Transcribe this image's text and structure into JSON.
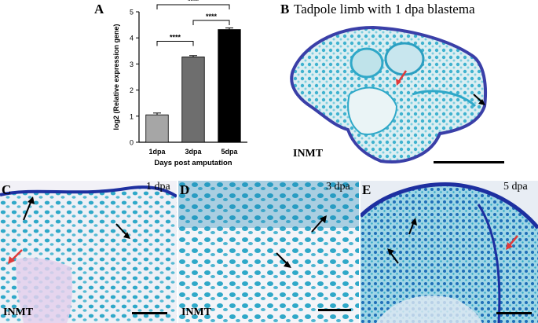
{
  "panels": {
    "a": {
      "letter": "A"
    },
    "b": {
      "letter": "B",
      "caption": "Tadpole limb with 1 dpa blastema",
      "stain": "INMT"
    },
    "c": {
      "letter": "C",
      "dpa": "1 dpa",
      "stain": "INMT"
    },
    "d": {
      "letter": "D",
      "dpa": "3 dpa",
      "stain": "INMT"
    },
    "e": {
      "letter": "E",
      "dpa": "5 dpa"
    }
  },
  "chart_data": {
    "type": "bar",
    "categories": [
      "1dpa",
      "3dpa",
      "5dpa"
    ],
    "values": [
      1.05,
      3.27,
      4.32
    ],
    "errors": [
      0.07,
      0.05,
      0.06
    ],
    "bar_colors": [
      "#a6a6a6",
      "#6e6e6e",
      "#000000"
    ],
    "xlabel": "Days post amputation",
    "ylabel": "log2 (Relative expression gene)",
    "ylim": [
      0,
      5
    ],
    "yticks": [
      "0",
      "1",
      "2",
      "3",
      "4",
      "5"
    ],
    "significance": [
      {
        "from": "1dpa",
        "to": "3dpa",
        "label": "****"
      },
      {
        "from": "3dpa",
        "to": "5dpa",
        "label": "****"
      },
      {
        "from": "1dpa",
        "to": "5dpa",
        "label": "****"
      }
    ]
  },
  "colors": {
    "stain_blue": "#2fa8c8",
    "stain_dark_blue": "#1d2fa0",
    "tissue_pink": "#e3d0ec",
    "arrow_red": "#e03a3a"
  }
}
